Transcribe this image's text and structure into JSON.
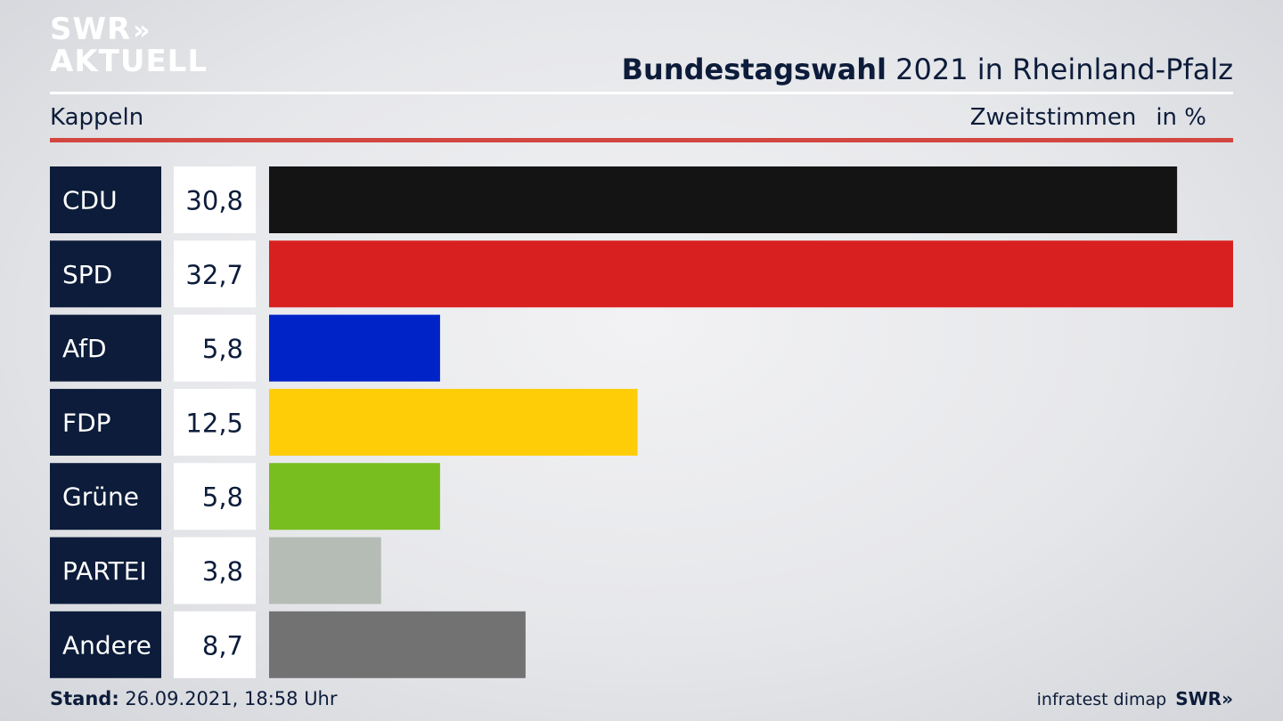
{
  "header": {
    "logo_line1": "SWR",
    "logo_arrows": "»",
    "logo_line2": "AKTUELL",
    "title_bold": "Bundestagswahl",
    "title_rest": "2021 in Rheinland-Pfalz",
    "region": "Kappeln",
    "measure": "Zweitstimmen",
    "unit": "in %"
  },
  "footer": {
    "stand_label": "Stand:",
    "stand_value": "26.09.2021, 18:58 Uhr",
    "source": "infratest dimap",
    "brand": "SWR»"
  },
  "chart_data": {
    "type": "bar",
    "orientation": "horizontal",
    "categories": [
      "CDU",
      "SPD",
      "AfD",
      "FDP",
      "Grüne",
      "PARTEI",
      "Andere"
    ],
    "values": [
      30.8,
      32.7,
      5.8,
      12.5,
      5.8,
      3.8,
      8.7
    ],
    "value_labels": [
      "30,8",
      "32,7",
      "5,8",
      "12,5",
      "5,8",
      "3,8",
      "8,7"
    ],
    "colors": [
      "#141414",
      "#d92020",
      "#0023c8",
      "#fecd08",
      "#78be1e",
      "#b4bcb5",
      "#727272"
    ],
    "xlim": [
      0,
      32.7
    ],
    "grid": false,
    "legend": "none"
  }
}
